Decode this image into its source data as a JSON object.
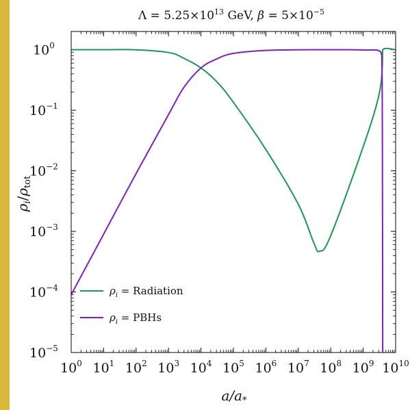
{
  "chart_data": {
    "type": "line",
    "title": "Λ = 5.25×10^13 GeV, β = 5×10^−5",
    "title_parts": {
      "lambda_lhs": "Λ = 5.25×10",
      "lambda_exp": "13",
      "unit": " GeV, ",
      "beta_sym": "β",
      "beta_mid": " = 5×10",
      "beta_exp": "−5"
    },
    "xlabel": "a/a*",
    "xlabel_parts": {
      "main": "a/a",
      "sub": "*"
    },
    "ylabel": "ρi/ρtot",
    "ylabel_parts": {
      "rho1": "ρ",
      "sub1": "i",
      "slash": "/",
      "rho2": "ρ",
      "sub2": "tot"
    },
    "x_scale": "log",
    "y_scale": "log",
    "xlim": [
      1,
      10000000000.0
    ],
    "ylim": [
      1e-05,
      2
    ],
    "x_ticks": [
      {
        "base": "10",
        "exp": "0",
        "value": 1
      },
      {
        "base": "10",
        "exp": "1",
        "value": 10
      },
      {
        "base": "10",
        "exp": "2",
        "value": 100
      },
      {
        "base": "10",
        "exp": "3",
        "value": 1000
      },
      {
        "base": "10",
        "exp": "4",
        "value": 10000
      },
      {
        "base": "10",
        "exp": "5",
        "value": 100000
      },
      {
        "base": "10",
        "exp": "6",
        "value": 1000000
      },
      {
        "base": "10",
        "exp": "7",
        "value": 10000000
      },
      {
        "base": "10",
        "exp": "8",
        "value": 100000000
      },
      {
        "base": "10",
        "exp": "9",
        "value": 1000000000
      },
      {
        "base": "10",
        "exp": "10",
        "value": 10000000000
      }
    ],
    "y_ticks": [
      {
        "base": "10",
        "exp": "0",
        "value": 1
      },
      {
        "base": "10",
        "exp": "−1",
        "value": 0.1
      },
      {
        "base": "10",
        "exp": "−2",
        "value": 0.01
      },
      {
        "base": "10",
        "exp": "−3",
        "value": 0.001
      },
      {
        "base": "10",
        "exp": "−4",
        "value": 0.0001
      },
      {
        "base": "10",
        "exp": "−5",
        "value": 1e-05
      }
    ],
    "grid": false,
    "legend_placement": "lower-left",
    "series": [
      {
        "name": "ρi = Radiation",
        "legend_parts": {
          "rho": "ρ",
          "sub": "i",
          "text": " = Radiation"
        },
        "color": "#1a9850",
        "x": [
          1,
          10,
          100,
          1000,
          3000,
          10000,
          30000,
          100000,
          1000000,
          10000000,
          30000000,
          45000000,
          100000000,
          1000000000,
          3000000000,
          3900000000,
          4000000000,
          10000000000
        ],
        "y": [
          1,
          1,
          0.997,
          0.9,
          0.72,
          0.5,
          0.3,
          0.135,
          0.0225,
          0.0028,
          0.00065,
          0.00047,
          0.00085,
          0.025,
          0.17,
          0.55,
          1,
          1
        ]
      },
      {
        "name": "ρi = PBHs",
        "legend_parts": {
          "rho": "ρ",
          "sub": "i",
          "text": " = PBHs"
        },
        "color": "#7a1fc4",
        "x": [
          1,
          10,
          100,
          1000,
          3000,
          10000,
          30000,
          100000,
          1000000,
          10000000,
          100000000,
          1000000000,
          3500000000,
          3800000000,
          3900000000,
          4000000000
        ],
        "y": [
          9e-05,
          0.0009,
          0.009,
          0.085,
          0.24,
          0.5,
          0.7,
          0.87,
          0.975,
          0.997,
          0.999,
          0.99,
          0.92,
          0.5,
          0.05,
          1e-05
        ]
      }
    ]
  }
}
